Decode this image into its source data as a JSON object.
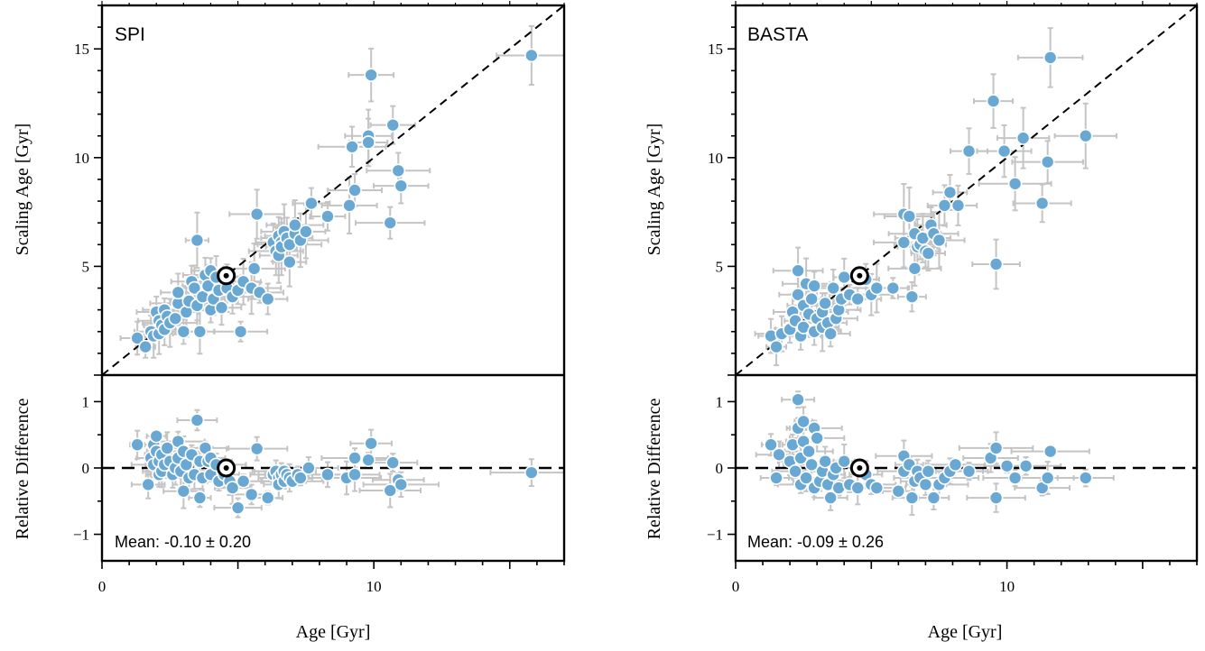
{
  "chart_data": [
    {
      "type": "scatter",
      "title": "SPI",
      "mean_text": "Mean: -0.10 ± 0.20",
      "xlabel": "Age [Gyr]",
      "ylabel_top": "Scaling Age [Gyr]",
      "ylabel_bottom": "Relative Difference",
      "xlim": [
        0,
        17
      ],
      "ylim_top": [
        0,
        17
      ],
      "ylim_bottom": [
        -1.4,
        1.4
      ],
      "xticks": [
        0,
        10
      ],
      "yticks_top": [
        5,
        10,
        15
      ],
      "yticks_bottom": [
        -1,
        0,
        1
      ],
      "one_to_one_line": true,
      "zero_line": true,
      "point_color": "#6aa8d4",
      "sun": {
        "x": 4.57,
        "y": 4.57,
        "rel": 0.0
      },
      "points_top": [
        [
          1.3,
          1.7
        ],
        [
          1.6,
          1.3
        ],
        [
          1.8,
          2.0
        ],
        [
          1.9,
          1.8
        ],
        [
          2.0,
          2.9
        ],
        [
          2.1,
          1.9
        ],
        [
          2.1,
          2.5
        ],
        [
          2.2,
          2.3
        ],
        [
          2.3,
          3.0
        ],
        [
          2.3,
          2.1
        ],
        [
          2.4,
          2.7
        ],
        [
          2.5,
          2.4
        ],
        [
          2.7,
          2.6
        ],
        [
          2.8,
          3.3
        ],
        [
          2.8,
          3.8
        ],
        [
          3.0,
          2.0
        ],
        [
          3.1,
          2.9
        ],
        [
          3.2,
          3.4
        ],
        [
          3.3,
          4.3
        ],
        [
          3.4,
          4.0
        ],
        [
          3.5,
          3.2
        ],
        [
          3.5,
          6.2
        ],
        [
          3.6,
          2.0
        ],
        [
          3.7,
          3.6
        ],
        [
          3.8,
          4.6
        ],
        [
          3.9,
          4.1
        ],
        [
          4.0,
          3.0
        ],
        [
          4.0,
          4.8
        ],
        [
          4.1,
          3.5
        ],
        [
          4.2,
          4.5
        ],
        [
          4.3,
          3.9
        ],
        [
          4.4,
          3.1
        ],
        [
          4.6,
          4.0
        ],
        [
          4.8,
          3.6
        ],
        [
          5.0,
          3.9
        ],
        [
          5.1,
          2.0
        ],
        [
          5.2,
          4.3
        ],
        [
          5.5,
          4.0
        ],
        [
          5.6,
          4.9
        ],
        [
          5.7,
          7.4
        ],
        [
          5.8,
          3.8
        ],
        [
          6.1,
          3.5
        ],
        [
          6.3,
          6.1
        ],
        [
          6.4,
          5.7
        ],
        [
          6.5,
          5.5
        ],
        [
          6.5,
          6.4
        ],
        [
          6.6,
          6.1
        ],
        [
          6.6,
          5.9
        ],
        [
          6.7,
          6.6
        ],
        [
          6.8,
          6.3
        ],
        [
          6.9,
          5.2
        ],
        [
          6.9,
          6.0
        ],
        [
          7.1,
          6.5
        ],
        [
          7.1,
          6.9
        ],
        [
          7.3,
          6.2
        ],
        [
          7.5,
          6.6
        ],
        [
          7.7,
          7.9
        ],
        [
          8.3,
          7.3
        ],
        [
          9.1,
          7.8
        ],
        [
          9.2,
          10.5
        ],
        [
          9.3,
          8.5
        ],
        [
          9.8,
          11.0
        ],
        [
          9.8,
          10.7
        ],
        [
          9.9,
          13.8
        ],
        [
          10.6,
          7.0
        ],
        [
          10.7,
          11.5
        ],
        [
          10.9,
          9.4
        ],
        [
          11.0,
          8.7
        ],
        [
          15.8,
          14.7
        ]
      ],
      "points_bottom": [
        [
          1.3,
          0.35
        ],
        [
          1.7,
          -0.25
        ],
        [
          1.8,
          0.15
        ],
        [
          1.9,
          0.05
        ],
        [
          1.9,
          0.35
        ],
        [
          2.0,
          0.25
        ],
        [
          2.0,
          0.48
        ],
        [
          2.1,
          0.1
        ],
        [
          2.1,
          -0.1
        ],
        [
          2.2,
          0.2
        ],
        [
          2.2,
          -0.05
        ],
        [
          2.3,
          0.05
        ],
        [
          2.4,
          0.3
        ],
        [
          2.5,
          0.1
        ],
        [
          2.6,
          -0.1
        ],
        [
          2.7,
          0.0
        ],
        [
          2.8,
          0.4
        ],
        [
          2.8,
          0.15
        ],
        [
          2.9,
          -0.05
        ],
        [
          3.0,
          -0.35
        ],
        [
          3.0,
          0.25
        ],
        [
          3.1,
          0.05
        ],
        [
          3.2,
          -0.15
        ],
        [
          3.3,
          0.2
        ],
        [
          3.4,
          -0.1
        ],
        [
          3.5,
          0.72
        ],
        [
          3.6,
          0.1
        ],
        [
          3.6,
          -0.45
        ],
        [
          3.7,
          -0.15
        ],
        [
          3.8,
          0.3
        ],
        [
          3.9,
          0.1
        ],
        [
          4.0,
          0.15
        ],
        [
          4.0,
          -0.1
        ],
        [
          4.2,
          0.05
        ],
        [
          4.3,
          -0.2
        ],
        [
          4.5,
          -0.1
        ],
        [
          4.7,
          -0.2
        ],
        [
          4.8,
          -0.3
        ],
        [
          5.0,
          -0.6
        ],
        [
          5.2,
          -0.2
        ],
        [
          5.5,
          -0.4
        ],
        [
          5.7,
          0.29
        ],
        [
          6.1,
          -0.45
        ],
        [
          6.3,
          -0.1
        ],
        [
          6.4,
          -0.05
        ],
        [
          6.5,
          -0.15
        ],
        [
          6.5,
          -0.25
        ],
        [
          6.6,
          -0.1
        ],
        [
          6.7,
          -0.05
        ],
        [
          6.7,
          -0.2
        ],
        [
          6.8,
          -0.1
        ],
        [
          6.9,
          -0.15
        ],
        [
          7.0,
          -0.2
        ],
        [
          7.2,
          -0.1
        ],
        [
          7.3,
          -0.15
        ],
        [
          7.6,
          0.0
        ],
        [
          8.3,
          -0.1
        ],
        [
          9.0,
          -0.15
        ],
        [
          9.3,
          -0.1
        ],
        [
          9.3,
          0.15
        ],
        [
          9.8,
          0.12
        ],
        [
          9.9,
          0.37
        ],
        [
          10.6,
          -0.34
        ],
        [
          10.7,
          0.08
        ],
        [
          10.9,
          -0.18
        ],
        [
          11.0,
          -0.25
        ],
        [
          15.8,
          -0.07
        ]
      ]
    },
    {
      "type": "scatter",
      "title": "BASTA",
      "mean_text": "Mean: -0.09 ± 0.26",
      "xlabel": "Age [Gyr]",
      "ylabel_top": "Scaling Age [Gyr]",
      "ylabel_bottom": "Relative Difference",
      "xlim": [
        0,
        17
      ],
      "ylim_top": [
        0,
        17
      ],
      "ylim_bottom": [
        -1.4,
        1.4
      ],
      "xticks": [
        0,
        10
      ],
      "yticks_top": [
        5,
        10,
        15
      ],
      "yticks_bottom": [
        -1,
        0,
        1
      ],
      "one_to_one_line": true,
      "zero_line": true,
      "point_color": "#6aa8d4",
      "sun": {
        "x": 4.57,
        "y": 4.57,
        "rel": 0.0
      },
      "points_top": [
        [
          1.3,
          1.8
        ],
        [
          1.5,
          1.3
        ],
        [
          1.7,
          1.9
        ],
        [
          2.0,
          2.1
        ],
        [
          2.1,
          2.9
        ],
        [
          2.2,
          2.5
        ],
        [
          2.3,
          4.8
        ],
        [
          2.3,
          3.7
        ],
        [
          2.4,
          1.8
        ],
        [
          2.5,
          2.2
        ],
        [
          2.5,
          3.2
        ],
        [
          2.6,
          4.2
        ],
        [
          2.7,
          2.8
        ],
        [
          2.8,
          3.5
        ],
        [
          2.9,
          2.0
        ],
        [
          2.9,
          4.1
        ],
        [
          3.0,
          2.6
        ],
        [
          3.2,
          2.2
        ],
        [
          3.2,
          2.9
        ],
        [
          3.3,
          3.3
        ],
        [
          3.4,
          2.4
        ],
        [
          3.5,
          1.9
        ],
        [
          3.6,
          4.0
        ],
        [
          3.7,
          2.6
        ],
        [
          3.8,
          3.0
        ],
        [
          3.9,
          3.5
        ],
        [
          4.0,
          4.5
        ],
        [
          4.2,
          3.7
        ],
        [
          4.5,
          3.5
        ],
        [
          4.8,
          4.4
        ],
        [
          5.0,
          3.7
        ],
        [
          5.2,
          4.0
        ],
        [
          5.8,
          4.0
        ],
        [
          6.2,
          7.4
        ],
        [
          6.2,
          6.1
        ],
        [
          6.4,
          7.3
        ],
        [
          6.5,
          3.6
        ],
        [
          6.6,
          6.5
        ],
        [
          6.6,
          4.9
        ],
        [
          6.7,
          5.9
        ],
        [
          6.8,
          6.0
        ],
        [
          6.9,
          6.3
        ],
        [
          7.0,
          5.7
        ],
        [
          7.1,
          5.6
        ],
        [
          7.2,
          6.9
        ],
        [
          7.3,
          6.5
        ],
        [
          7.5,
          6.2
        ],
        [
          7.7,
          7.8
        ],
        [
          7.9,
          8.4
        ],
        [
          8.2,
          7.8
        ],
        [
          8.6,
          10.3
        ],
        [
          9.5,
          12.6
        ],
        [
          9.6,
          5.1
        ],
        [
          9.9,
          10.3
        ],
        [
          10.3,
          8.8
        ],
        [
          10.6,
          10.9
        ],
        [
          11.3,
          7.9
        ],
        [
          11.5,
          9.8
        ],
        [
          11.6,
          14.6
        ],
        [
          12.9,
          11.0
        ]
      ],
      "points_bottom": [
        [
          1.3,
          0.35
        ],
        [
          1.5,
          -0.15
        ],
        [
          1.6,
          0.2
        ],
        [
          2.0,
          0.1
        ],
        [
          2.1,
          0.35
        ],
        [
          2.2,
          -0.05
        ],
        [
          2.3,
          1.03
        ],
        [
          2.3,
          0.6
        ],
        [
          2.4,
          -0.25
        ],
        [
          2.4,
          0.15
        ],
        [
          2.5,
          0.4
        ],
        [
          2.5,
          0.7
        ],
        [
          2.6,
          -0.15
        ],
        [
          2.7,
          0.25
        ],
        [
          2.8,
          0.05
        ],
        [
          2.9,
          0.6
        ],
        [
          2.9,
          -0.3
        ],
        [
          3.0,
          0.45
        ],
        [
          3.1,
          -0.2
        ],
        [
          3.2,
          -0.05
        ],
        [
          3.3,
          0.1
        ],
        [
          3.4,
          -0.25
        ],
        [
          3.5,
          -0.45
        ],
        [
          3.6,
          -0.1
        ],
        [
          3.7,
          0.0
        ],
        [
          3.8,
          -0.3
        ],
        [
          4.0,
          0.1
        ],
        [
          4.2,
          -0.25
        ],
        [
          4.5,
          -0.3
        ],
        [
          4.8,
          -0.1
        ],
        [
          5.0,
          -0.25
        ],
        [
          5.2,
          -0.3
        ],
        [
          6.0,
          -0.35
        ],
        [
          6.2,
          0.18
        ],
        [
          6.2,
          -0.05
        ],
        [
          6.4,
          0.05
        ],
        [
          6.5,
          -0.45
        ],
        [
          6.6,
          -0.2
        ],
        [
          6.7,
          -0.05
        ],
        [
          6.8,
          -0.15
        ],
        [
          7.0,
          -0.25
        ],
        [
          7.1,
          -0.05
        ],
        [
          7.3,
          -0.45
        ],
        [
          7.5,
          -0.25
        ],
        [
          7.7,
          -0.15
        ],
        [
          7.9,
          -0.05
        ],
        [
          8.1,
          0.05
        ],
        [
          8.6,
          -0.05
        ],
        [
          9.4,
          0.15
        ],
        [
          9.6,
          -0.45
        ],
        [
          9.6,
          0.3
        ],
        [
          10.0,
          0.03
        ],
        [
          10.3,
          -0.15
        ],
        [
          10.7,
          0.03
        ],
        [
          11.3,
          -0.3
        ],
        [
          11.5,
          -0.15
        ],
        [
          11.6,
          0.25
        ],
        [
          12.9,
          -0.15
        ]
      ]
    }
  ]
}
